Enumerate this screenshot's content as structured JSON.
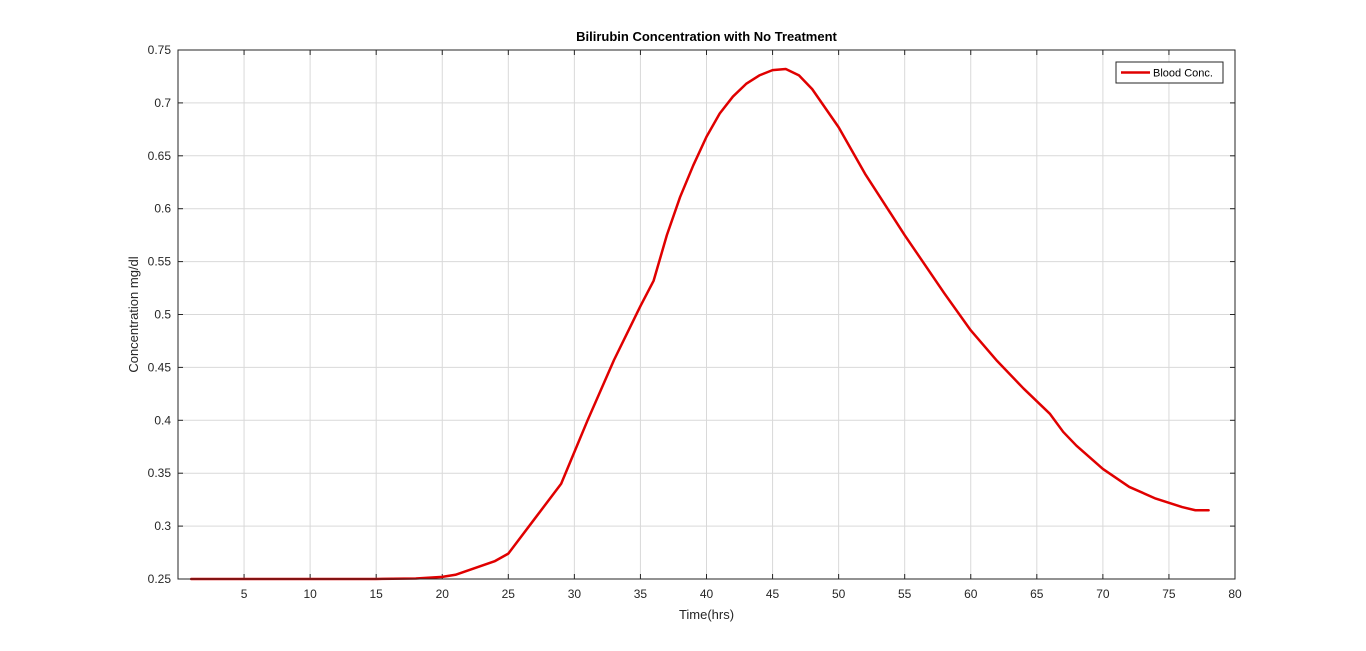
{
  "chart_data": {
    "type": "line",
    "title": "Bilirubin Concentration with No Treatment",
    "xlabel": "Time(hrs)",
    "ylabel": "Concentration mg/dl",
    "xlim": [
      0,
      80
    ],
    "ylim": [
      0.25,
      0.75
    ],
    "xticks": [
      5,
      10,
      15,
      20,
      25,
      30,
      35,
      40,
      45,
      50,
      55,
      60,
      65,
      70,
      75,
      80
    ],
    "yticks": [
      0.25,
      0.3,
      0.35,
      0.4,
      0.45,
      0.5,
      0.55,
      0.6,
      0.65,
      0.7,
      0.75
    ],
    "xtick_labels": [
      "5",
      "10",
      "15",
      "20",
      "25",
      "30",
      "35",
      "40",
      "45",
      "50",
      "55",
      "60",
      "65",
      "70",
      "75",
      "80"
    ],
    "ytick_labels": [
      "0.25",
      "0.3",
      "0.35",
      "0.4",
      "0.45",
      "0.5",
      "0.55",
      "0.6",
      "0.65",
      "0.7",
      "0.75"
    ],
    "grid": true,
    "legend_position": "top-right",
    "series": [
      {
        "name": "Blood Conc.",
        "color": "#e00000",
        "x": [
          1,
          5,
          10,
          15,
          18,
          20,
          21,
          24,
          25,
          27,
          29,
          30,
          31,
          33,
          35,
          36,
          37,
          38,
          39,
          40,
          41,
          42,
          43,
          44,
          45,
          46,
          47,
          48,
          50,
          52,
          55,
          58,
          60,
          62,
          64,
          66,
          67,
          68,
          70,
          72,
          74,
          76,
          77,
          78
        ],
        "y": [
          0.25,
          0.25,
          0.25,
          0.25,
          0.2505,
          0.252,
          0.254,
          0.267,
          0.274,
          0.307,
          0.34,
          0.37,
          0.4,
          0.457,
          0.508,
          0.532,
          0.575,
          0.611,
          0.641,
          0.668,
          0.69,
          0.706,
          0.718,
          0.726,
          0.731,
          0.732,
          0.726,
          0.713,
          0.677,
          0.633,
          0.575,
          0.52,
          0.485,
          0.456,
          0.43,
          0.406,
          0.389,
          0.376,
          0.354,
          0.337,
          0.326,
          0.318,
          0.315,
          0.315
        ]
      }
    ]
  }
}
